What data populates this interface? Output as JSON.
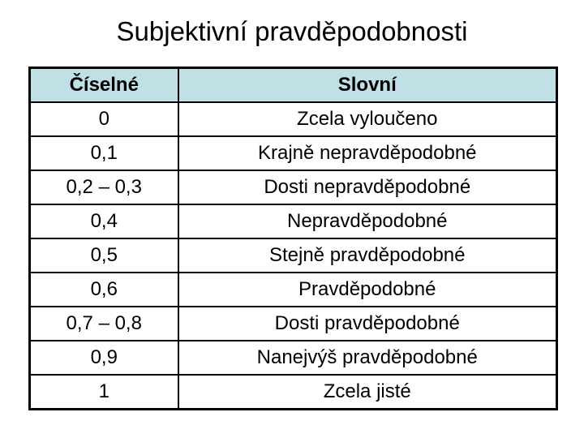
{
  "slide": {
    "title": "Subjektivní pravděpodobnosti",
    "background_color": "#ffffff",
    "text_color": "#000000"
  },
  "table": {
    "header_bg_color": "#bfe0e5",
    "border_color": "#000000",
    "headers": {
      "numeric": "Číselné",
      "verbal": "Slovní"
    },
    "rows": [
      {
        "numeric": "0",
        "verbal": "Zcela vyloučeno"
      },
      {
        "numeric": "0,1",
        "verbal": "Krajně nepravděpodobné"
      },
      {
        "numeric": "0,2 – 0,3",
        "verbal": "Dosti nepravděpodobné"
      },
      {
        "numeric": "0,4",
        "verbal": "Nepravděpodobné"
      },
      {
        "numeric": "0,5",
        "verbal": "Stejně pravděpodobné"
      },
      {
        "numeric": "0,6",
        "verbal": "Pravděpodobné"
      },
      {
        "numeric": "0,7 – 0,8",
        "verbal": "Dosti pravděpodobné"
      },
      {
        "numeric": "0,9",
        "verbal": "Nanejvýš pravděpodobné"
      },
      {
        "numeric": "1",
        "verbal": "Zcela jisté"
      }
    ]
  }
}
